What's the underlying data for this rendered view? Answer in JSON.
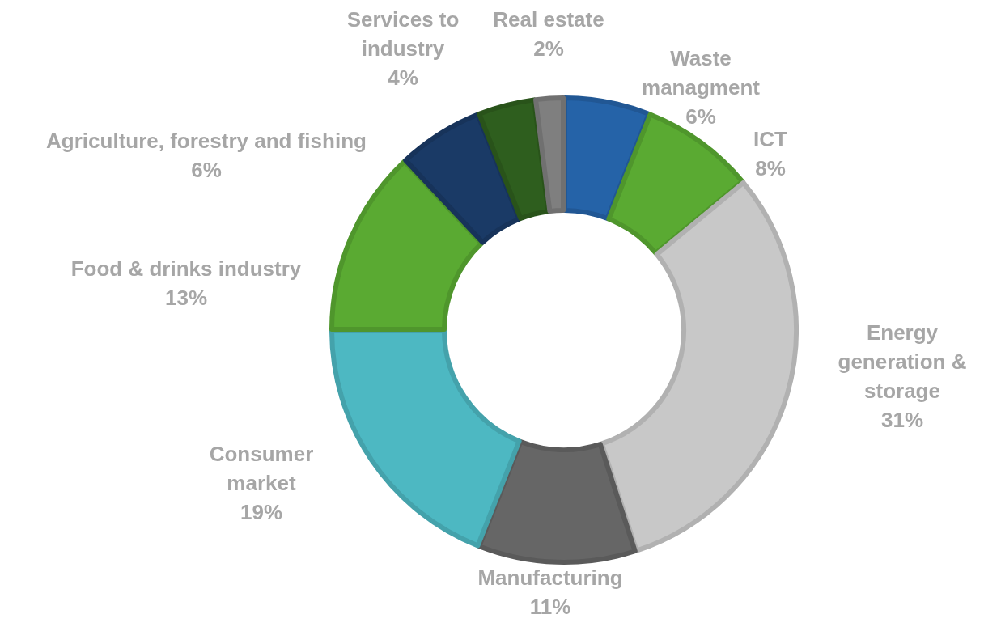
{
  "chart_data": {
    "type": "donut",
    "categories": [
      "Waste managment",
      "ICT",
      "Energy generation & storage",
      "Manufacturing",
      "Consumer market",
      "Food & drinks industry",
      "Agriculture, forestry and fishing",
      "Services to industry",
      "Real estate"
    ],
    "values": [
      6,
      8,
      31,
      11,
      19,
      13,
      6,
      4,
      2
    ],
    "value_labels": [
      "6%",
      "8%",
      "31%",
      "11%",
      "19%",
      "13%",
      "6%",
      "4%",
      "2%"
    ],
    "colors": [
      "#2563a8",
      "#5aaa32",
      "#c8c8c8",
      "#666666",
      "#4db8c2",
      "#5aaa32",
      "#1a3a66",
      "#2e5e1e",
      "#7f7f7f"
    ]
  }
}
